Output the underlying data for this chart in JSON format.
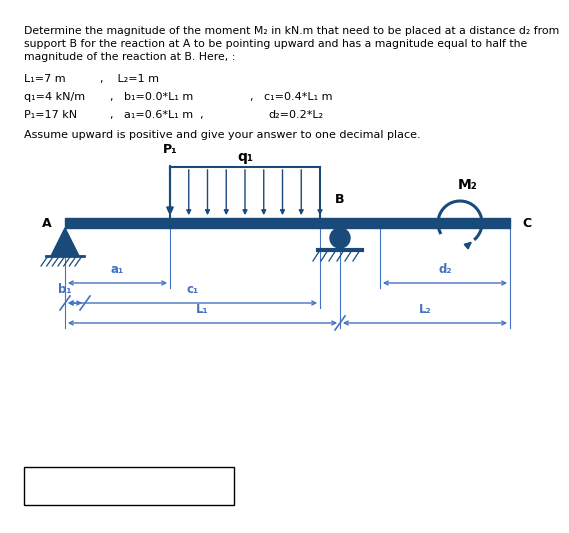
{
  "title_text": "Determine the magnitude of the moment M₂ in kN.m that need to be placed at a distance d₂ from\nsupport B for the reaction at A to be pointing upward and has a magnitude equal to half the\nmagnitude of the reaction at B. Here, :",
  "param_line1_a": "L₁=7 m",
  "param_line1_b": ",    L₂=1 m",
  "param_line2_a": "q₁=4 kN/m",
  "param_line2_b": ",   b₁=0.0*L₁ m",
  "param_line2_c": ",   c₁=0.4*L₁ m",
  "param_line3_a": "P₁=17 kN",
  "param_line3_b": ",   a₁=0.6*L₁ m  ,",
  "param_line3_c": "d₂=0.2*L₂",
  "assume_line": "Assume upward is positive and give your answer to one decimal place.",
  "beam_color": "#1a4a7a",
  "arrow_color": "#1a4a7a",
  "dim_color": "#4472c4",
  "background": "#ffffff",
  "text_color": "#000000"
}
